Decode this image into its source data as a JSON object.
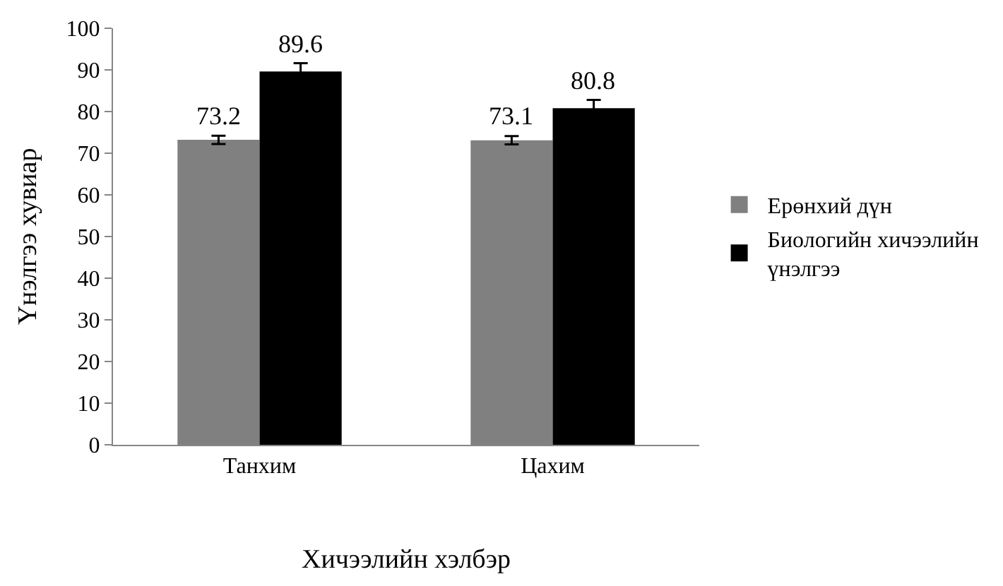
{
  "chart_data": {
    "type": "bar",
    "xlabel": "Хичээлийн хэлбэр",
    "ylabel": "Үнэлгээ хувиар",
    "categories": [
      "Танхим",
      "Цахим"
    ],
    "series": [
      {
        "name": "Ерөнхий дүн",
        "color": "#808080",
        "values": [
          73.2,
          73.1
        ],
        "errors": [
          1,
          1
        ]
      },
      {
        "name": "Биологийн хичээлийн үнэлгээ",
        "color": "#000000",
        "values": [
          89.6,
          80.8
        ],
        "errors": [
          2,
          2
        ]
      }
    ],
    "ylim": [
      0,
      100
    ],
    "yticks": [
      0,
      10,
      20,
      30,
      40,
      50,
      60,
      70,
      80,
      90,
      100
    ],
    "legend": "right",
    "data_labels": true
  }
}
